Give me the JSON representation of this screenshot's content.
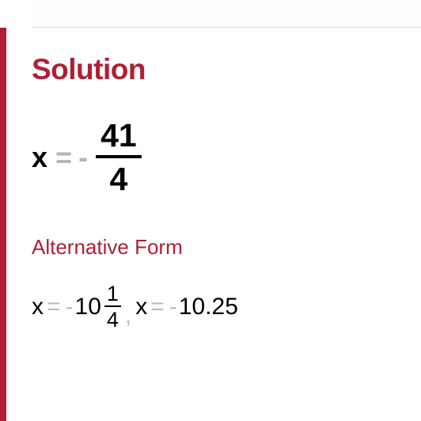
{
  "colors": {
    "accent": "#b01f35",
    "muted": "#b5b5b5",
    "muted_light": "#bcbcbc",
    "text": "#000000",
    "background": "#ffffff",
    "divider": "#d8d8d8"
  },
  "solution": {
    "heading": "Solution",
    "heading_fontsize": 37,
    "equation": {
      "variable": "x",
      "relation": "=",
      "sign": "-",
      "numerator": "41",
      "denominator": "4",
      "var_fontsize": 36,
      "frac_fontsize": 41
    }
  },
  "alternative": {
    "heading": "Alternative Form",
    "heading_fontsize": 26,
    "forms": [
      {
        "variable": "x",
        "relation": "=",
        "sign": "-",
        "whole": "10",
        "numerator": "1",
        "denominator": "4"
      },
      {
        "variable": "x",
        "relation": "=",
        "sign": "-",
        "decimal": "10.25"
      }
    ],
    "fontsize": 30,
    "separator": ","
  }
}
